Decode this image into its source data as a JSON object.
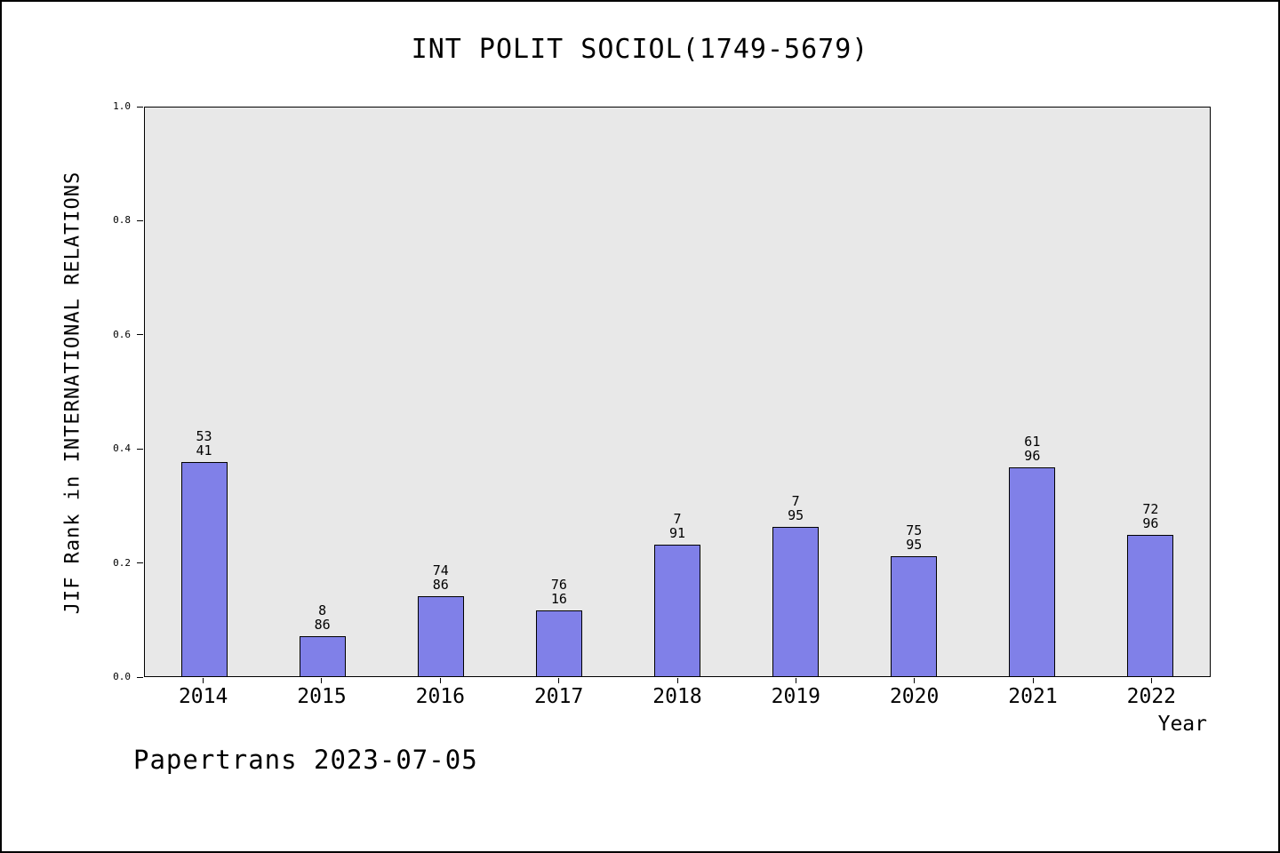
{
  "title": "INT POLIT SOCIOL(1749-5679)",
  "footer": "Papertrans 2023-07-05",
  "colors": {
    "bar_fill": "#8080e8",
    "bar_border": "#000000",
    "plot_bg": "#e8e8e8",
    "page_bg": "#ffffff"
  },
  "chart_data": {
    "type": "bar",
    "title": "INT POLIT SOCIOL(1749-5679)",
    "xlabel": "Year",
    "ylabel": "JIF Rank in INTERNATIONAL RELATIONS",
    "ylim": [
      0.0,
      1.0
    ],
    "yticks": [
      0.0,
      0.2,
      0.4,
      0.6,
      0.8,
      1.0
    ],
    "grid": false,
    "legend": "none",
    "categories": [
      "2014",
      "2015",
      "2016",
      "2017",
      "2018",
      "2019",
      "2020",
      "2021",
      "2022"
    ],
    "values": [
      0.377,
      0.07,
      0.14,
      0.115,
      0.232,
      0.263,
      0.211,
      0.367,
      0.249
    ],
    "bar_labels": [
      [
        "53",
        "41"
      ],
      [
        "8",
        "86"
      ],
      [
        "74",
        "86"
      ],
      [
        "76",
        "16"
      ],
      [
        "7",
        "91"
      ],
      [
        "7",
        "95"
      ],
      [
        "75",
        "95"
      ],
      [
        "61",
        "96"
      ],
      [
        "72",
        "96"
      ]
    ]
  }
}
